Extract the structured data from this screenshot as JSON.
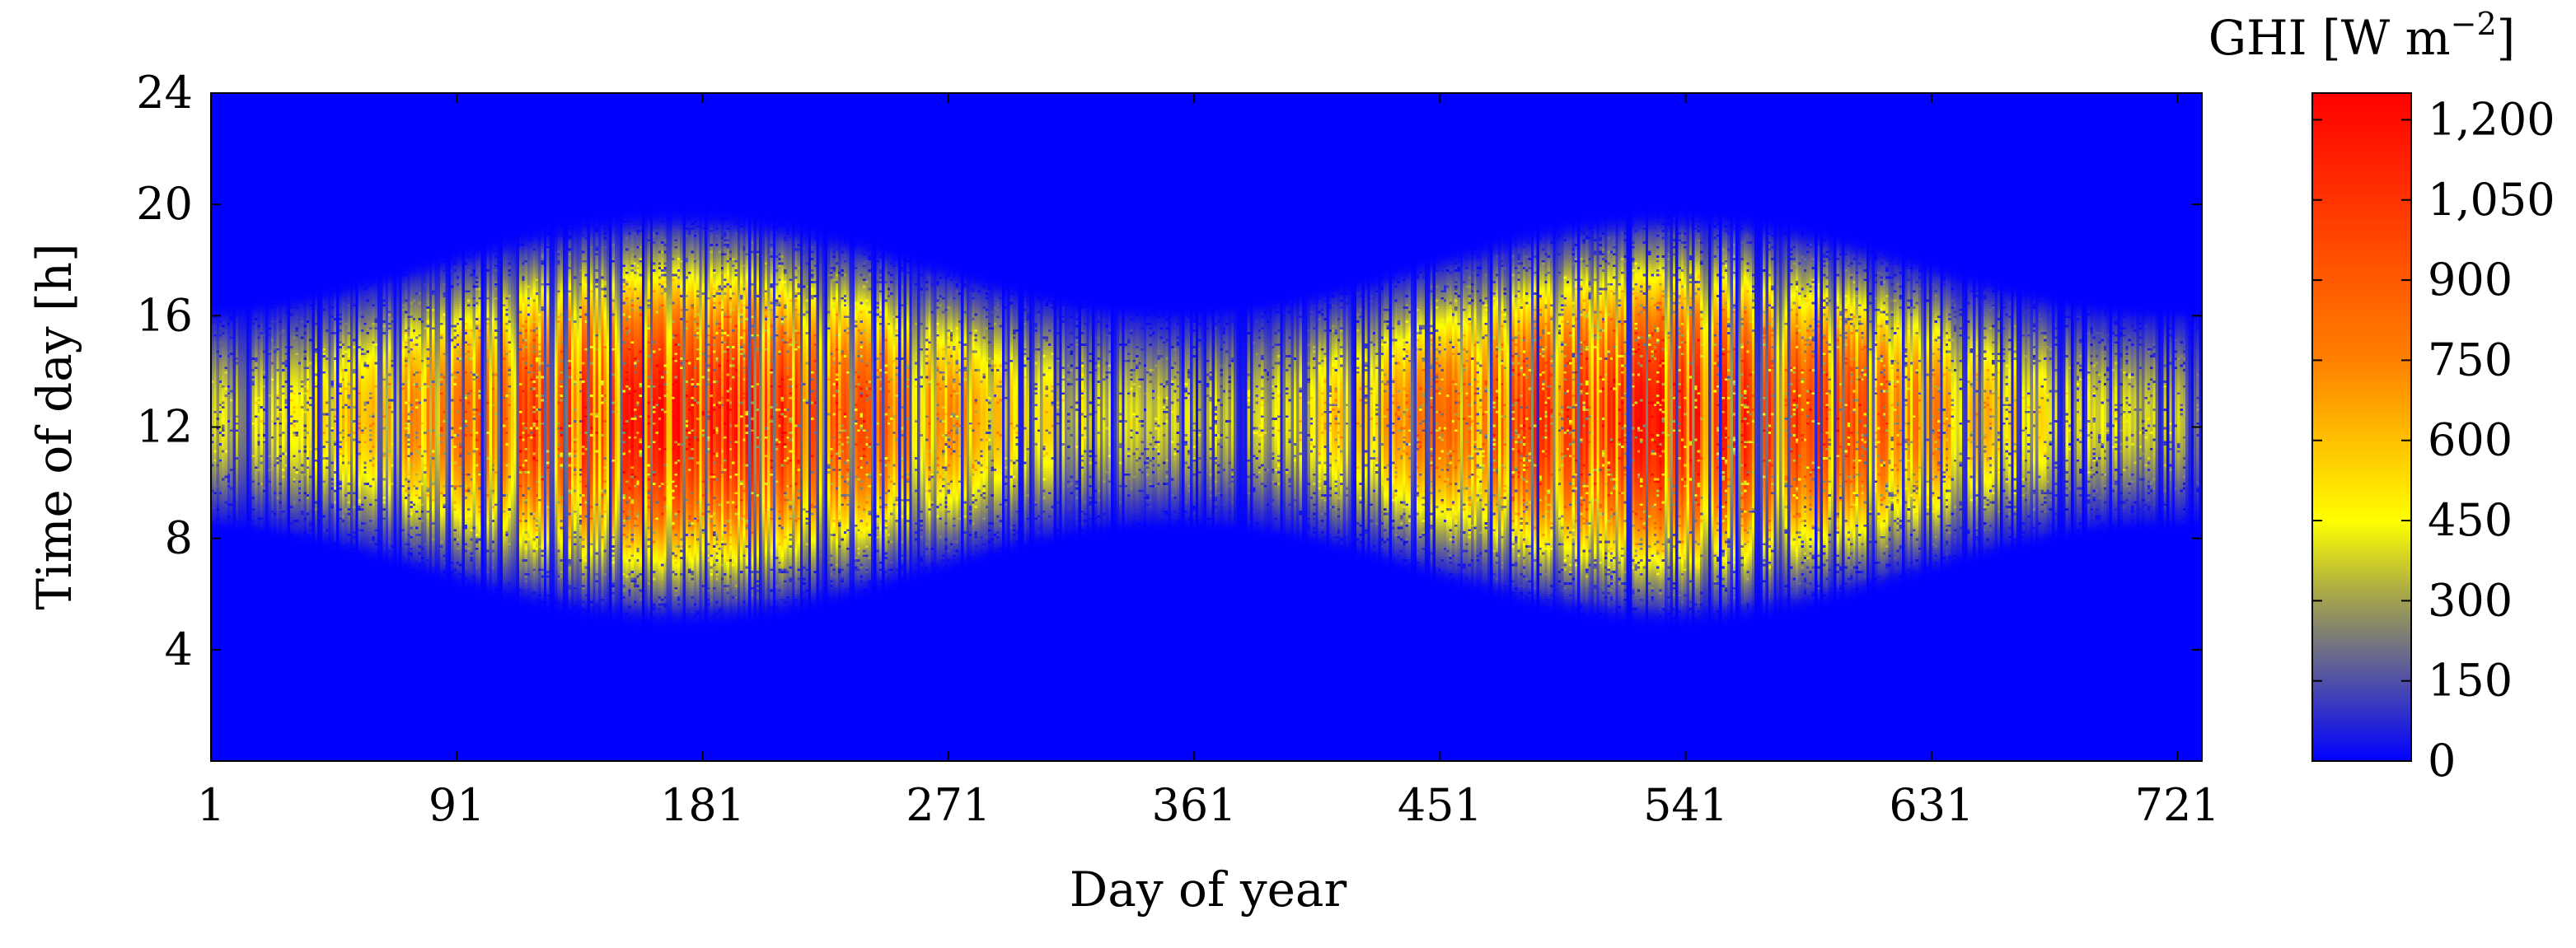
{
  "chart_data": {
    "type": "heatmap",
    "xlabel": "Day of year",
    "ylabel": "Time of day [h]",
    "xlim": [
      1,
      730
    ],
    "ylim": [
      0,
      24
    ],
    "x_ticks": [
      1,
      91,
      181,
      271,
      361,
      451,
      541,
      631,
      721
    ],
    "x_tick_labels": [
      "1",
      "91",
      "181",
      "271",
      "361",
      "451",
      "541",
      "631",
      "721"
    ],
    "y_ticks": [
      4,
      8,
      12,
      16,
      20,
      24
    ],
    "y_tick_labels": [
      "4",
      "8",
      "12",
      "16",
      "20",
      "24"
    ],
    "colorbar": {
      "title": "GHI [W m",
      "title_superscript": "−2",
      "title_close": "]",
      "range": [
        0,
        1250
      ],
      "ticks": [
        0,
        150,
        300,
        450,
        600,
        750,
        900,
        1050,
        1200
      ],
      "tick_labels": [
        "0",
        "150",
        "300",
        "450",
        "600",
        "750",
        "900",
        "1,050",
        "1,200"
      ],
      "colormap": [
        {
          "value": 0,
          "color": "#0000ff"
        },
        {
          "value": 300,
          "color": "#a0a050"
        },
        {
          "value": 450,
          "color": "#ffff00"
        },
        {
          "value": 750,
          "color": "#ff8000"
        },
        {
          "value": 1250,
          "color": "#ff0000"
        }
      ]
    },
    "profile": {
      "days_per_year": 365,
      "solstice_day": 172,
      "noon_hour": 12.3,
      "half_day_length_hours": {
        "min": 3.6,
        "max": 6.7
      },
      "peak_ghi": {
        "min": 300,
        "max": 900
      }
    }
  }
}
